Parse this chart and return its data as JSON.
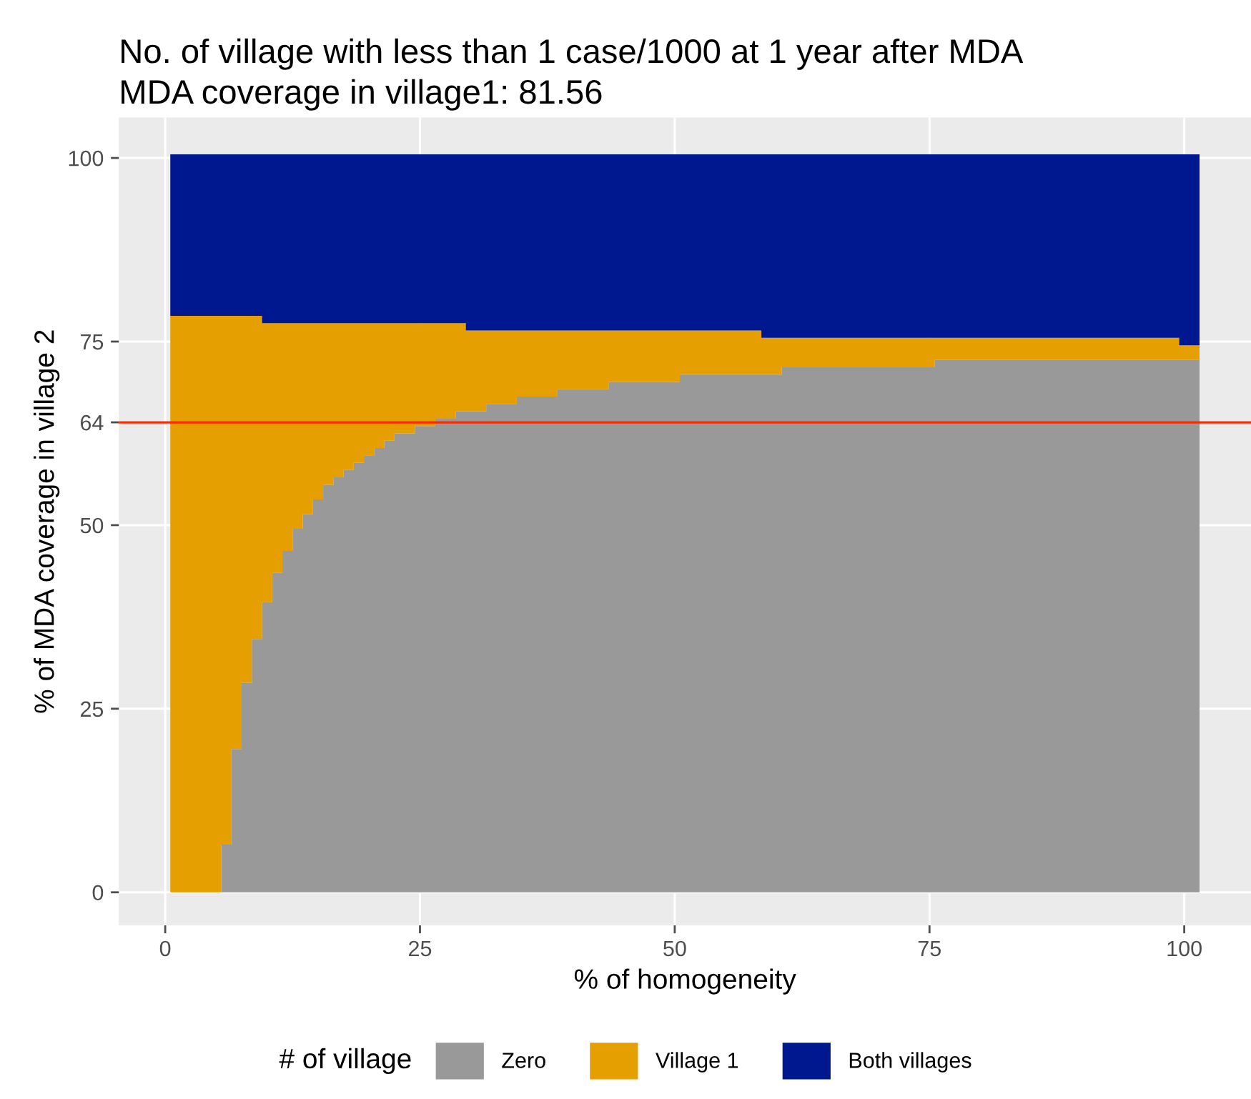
{
  "chart_data": {
    "type": "area",
    "stacked": true,
    "title": "No. of village with less than 1 case/1000 at 1 year after MDA",
    "subtitle": "MDA coverage in village1: 81.56",
    "xlabel": "% of homogeneity",
    "ylabel": "% of MDA coverage in village 2",
    "legend_title": "# of village",
    "legend": "bottom",
    "grid": true,
    "x": [
      1,
      2,
      3,
      4,
      5,
      6,
      7,
      8,
      9,
      10,
      11,
      12,
      13,
      14,
      15,
      16,
      17,
      18,
      19,
      20,
      21,
      22,
      23,
      24,
      25,
      26,
      27,
      28,
      29,
      30,
      31,
      32,
      33,
      34,
      35,
      36,
      37,
      38,
      39,
      40,
      41,
      42,
      43,
      44,
      45,
      46,
      47,
      48,
      49,
      50,
      51,
      52,
      53,
      54,
      55,
      56,
      57,
      58,
      59,
      60,
      61,
      62,
      63,
      64,
      65,
      66,
      67,
      68,
      69,
      70,
      71,
      72,
      73,
      74,
      75,
      76,
      77,
      78,
      79,
      80,
      81,
      82,
      83,
      84,
      85,
      86,
      87,
      88,
      89,
      90,
      91,
      92,
      93,
      94,
      95,
      96,
      97,
      98,
      99,
      100,
      101
    ],
    "series": [
      {
        "name": "Zero",
        "color": "#999999",
        "values": [
          0,
          0,
          0,
          0,
          0,
          6.5,
          19.5,
          28.5,
          34.5,
          39.5,
          43.5,
          46.5,
          49.5,
          51.5,
          53.5,
          55.5,
          56.5,
          57.5,
          58.5,
          59.5,
          60.5,
          61.5,
          62.5,
          62.5,
          63.5,
          63.5,
          64.5,
          64.5,
          65.5,
          65.5,
          65.5,
          66.5,
          66.5,
          66.5,
          67.5,
          67.5,
          67.5,
          67.5,
          68.5,
          68.5,
          68.5,
          68.5,
          68.5,
          69.5,
          69.5,
          69.5,
          69.5,
          69.5,
          69.5,
          69.5,
          70.5,
          70.5,
          70.5,
          70.5,
          70.5,
          70.5,
          70.5,
          70.5,
          70.5,
          70.5,
          71.5,
          71.5,
          71.5,
          71.5,
          71.5,
          71.5,
          71.5,
          71.5,
          71.5,
          71.5,
          71.5,
          71.5,
          71.5,
          71.5,
          71.5,
          72.5,
          72.5,
          72.5,
          72.5,
          72.5,
          72.5,
          72.5,
          72.5,
          72.5,
          72.5,
          72.5,
          72.5,
          72.5,
          72.5,
          72.5,
          72.5,
          72.5,
          72.5,
          72.5,
          72.5,
          72.5,
          72.5,
          72.5,
          72.5,
          72.5,
          72.5
        ]
      },
      {
        "name": "Village 1",
        "color": "#e69f00",
        "values": [
          78.5,
          78.5,
          78.5,
          78.5,
          78.5,
          72,
          59,
          50,
          44,
          38,
          34,
          31,
          28,
          26,
          24,
          22,
          21,
          20,
          19,
          18,
          17,
          16,
          15,
          15,
          14,
          14,
          13,
          13,
          12,
          11,
          11,
          10,
          10,
          10,
          9,
          9,
          9,
          9,
          8,
          8,
          8,
          8,
          8,
          7,
          7,
          7,
          7,
          7,
          7,
          7,
          6,
          6,
          6,
          6,
          6,
          6,
          6,
          6,
          5,
          5,
          4,
          4,
          4,
          4,
          4,
          4,
          4,
          4,
          4,
          4,
          4,
          4,
          4,
          4,
          4,
          3,
          3,
          3,
          3,
          3,
          3,
          3,
          3,
          3,
          3,
          3,
          3,
          3,
          3,
          3,
          3,
          3,
          3,
          3,
          3,
          3,
          3,
          3,
          3,
          2,
          2
        ]
      },
      {
        "name": "Both villages",
        "color": "#00188f",
        "values": [
          22,
          22,
          22,
          22,
          22,
          22,
          22,
          22,
          22,
          23,
          23,
          23,
          23,
          23,
          23,
          23,
          23,
          23,
          23,
          23,
          23,
          23,
          23,
          23,
          23,
          23,
          23,
          23,
          23,
          24,
          24,
          24,
          24,
          24,
          24,
          24,
          24,
          24,
          24,
          24,
          24,
          24,
          24,
          24,
          24,
          24,
          24,
          24,
          24,
          24,
          24,
          24,
          24,
          24,
          24,
          24,
          24,
          24,
          25,
          25,
          25,
          25,
          25,
          25,
          25,
          25,
          25,
          25,
          25,
          25,
          25,
          25,
          25,
          25,
          25,
          25,
          25,
          25,
          25,
          25,
          25,
          25,
          25,
          25,
          25,
          25,
          25,
          25,
          25,
          25,
          25,
          25,
          25,
          25,
          25,
          25,
          25,
          25,
          25,
          26,
          26
        ]
      }
    ],
    "xlim": [
      -4.55,
      106.55
    ],
    "xticks": [
      0,
      25,
      50,
      75,
      100
    ],
    "ylim": [
      -4.5,
      105.5
    ],
    "yticks": [
      0,
      25,
      50,
      64,
      75,
      100
    ],
    "ref_lines": [
      {
        "axis": "y",
        "value": 64,
        "color": "#ff2a00",
        "line_style": "solid"
      }
    ]
  }
}
